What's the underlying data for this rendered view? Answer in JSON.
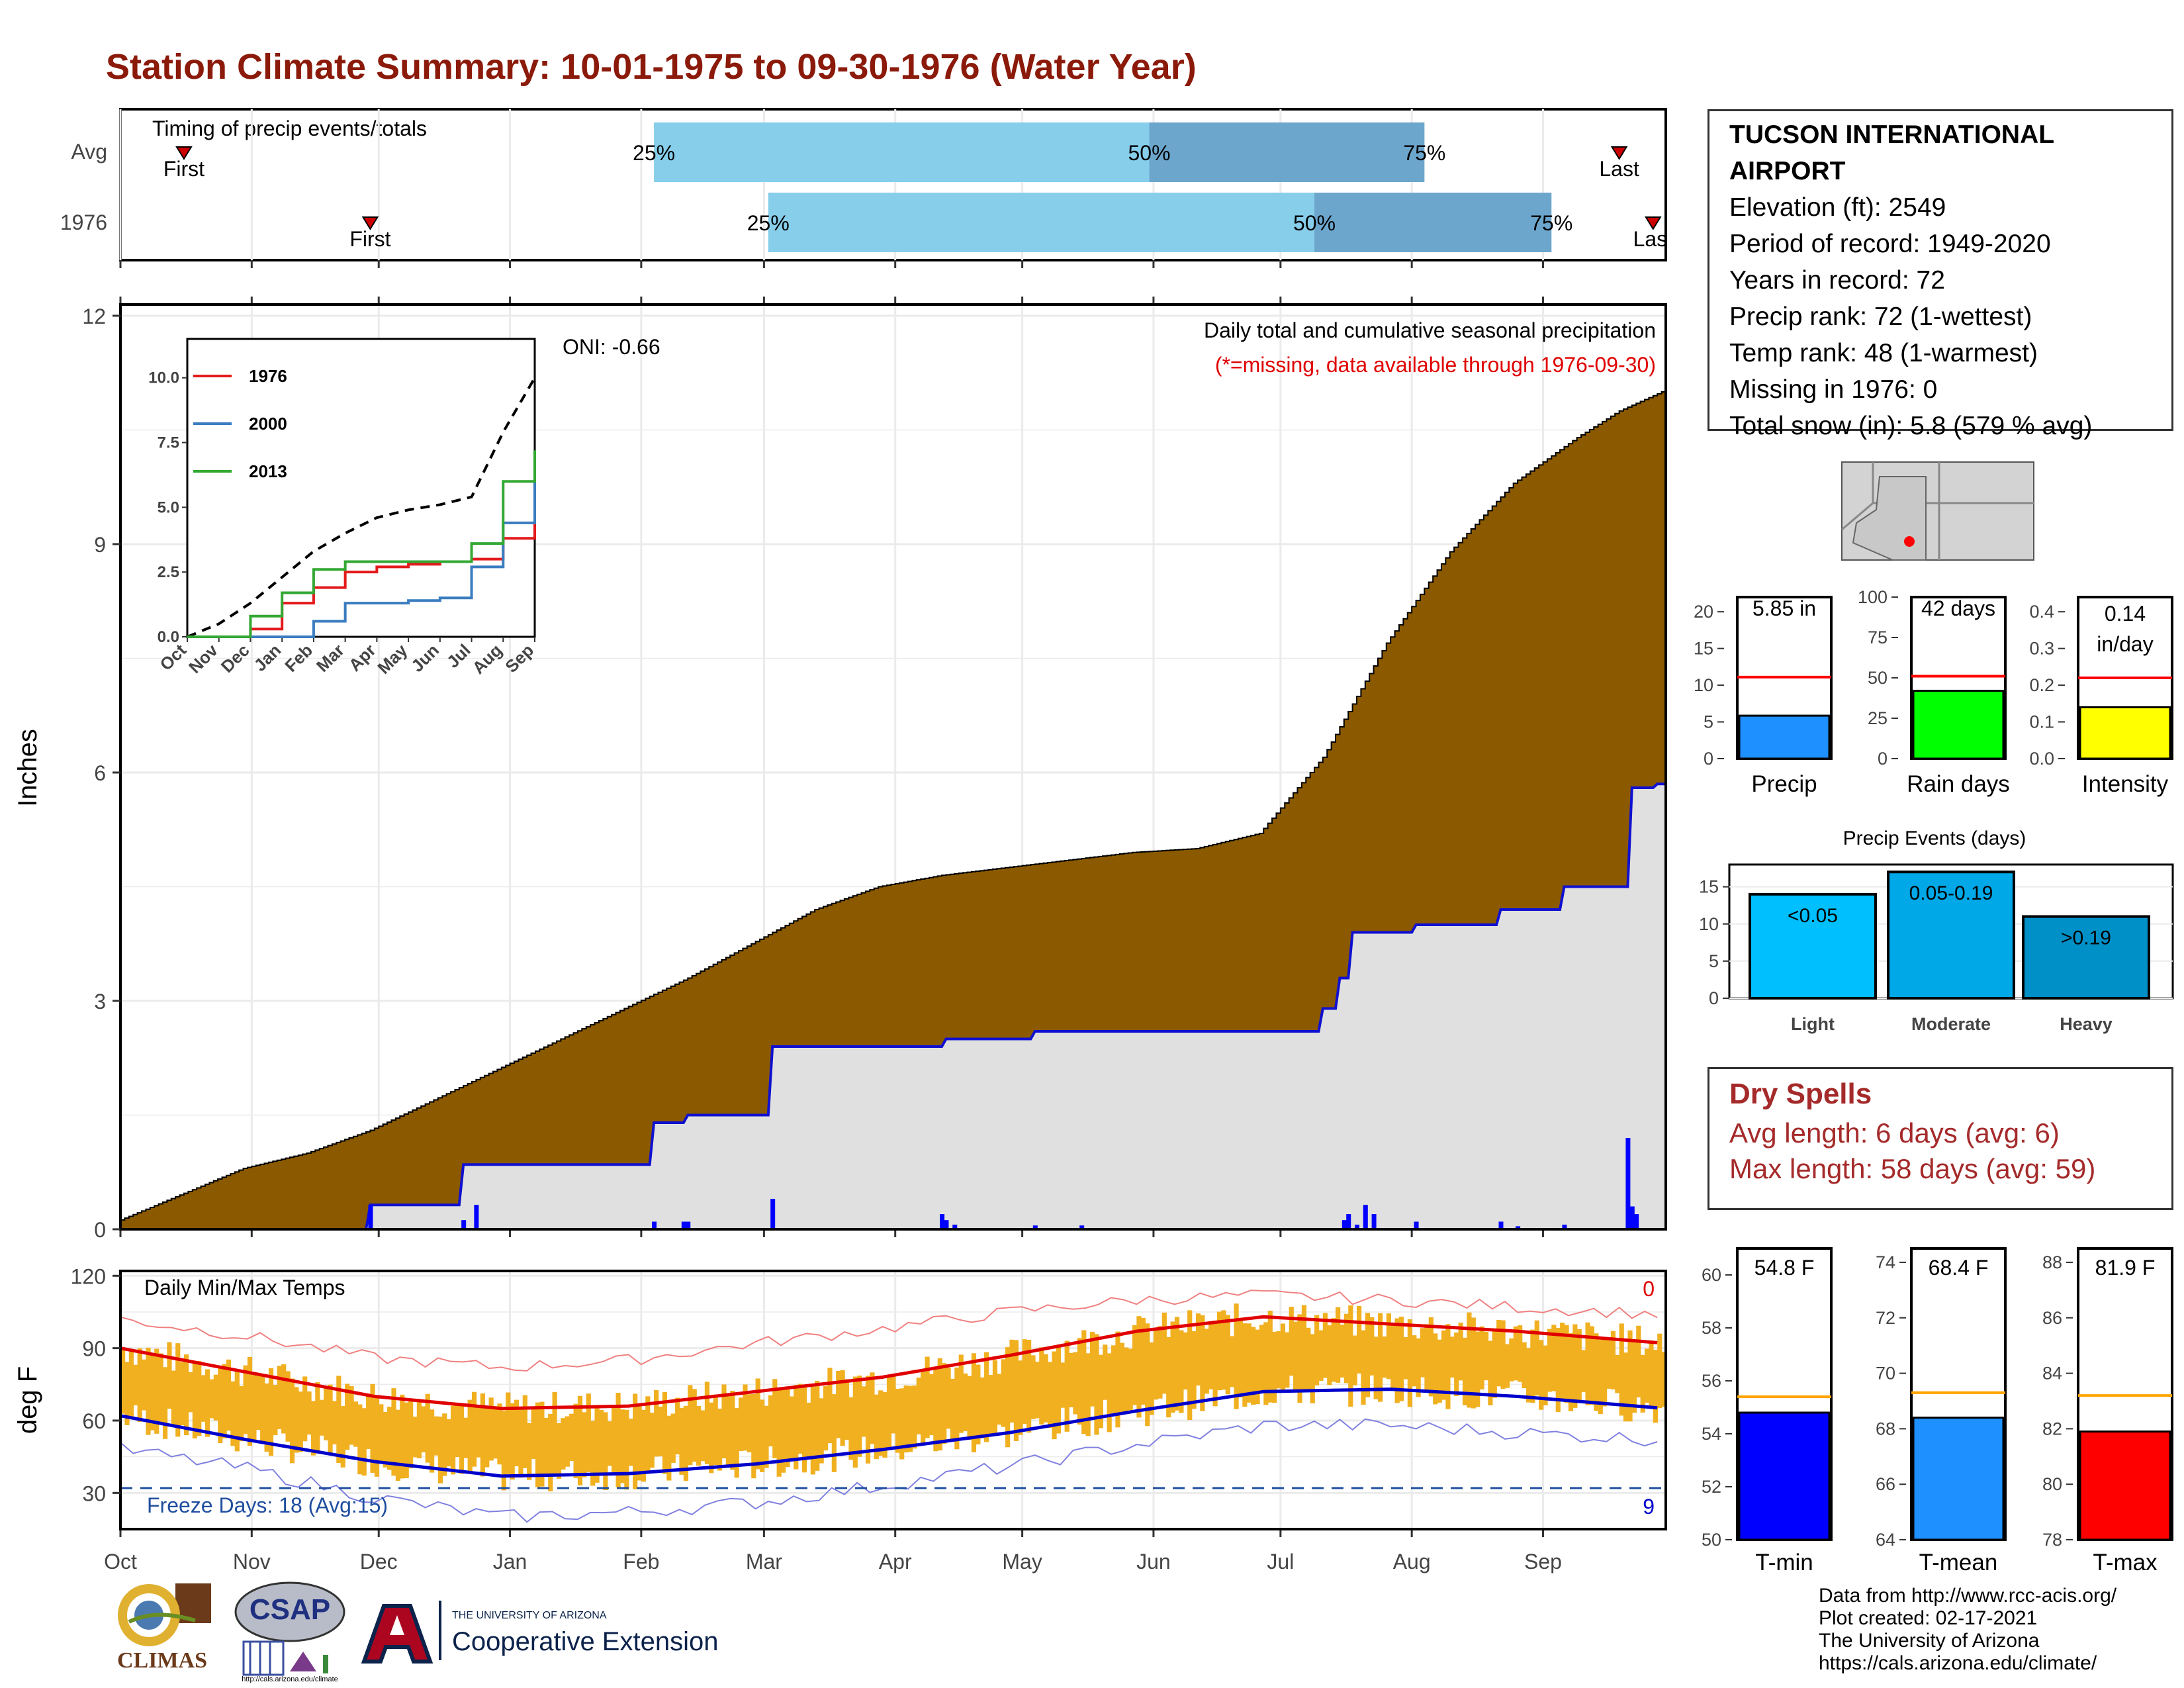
{
  "title": "Station Climate Summary: 10-01-1975 to 09-30-1976 (Water Year)",
  "timing": {
    "label": "Timing of precip events/totals",
    "rows": [
      {
        "name": "Avg",
        "first_day": 15,
        "last_day": 354,
        "p25": 126,
        "p50": 243,
        "p75": 308
      },
      {
        "name": "1976",
        "first_day": 59,
        "last_day": 362,
        "p25": 153,
        "p50": 282,
        "p75": 338
      }
    ],
    "pct_labels": [
      "25%",
      "50%",
      "75%"
    ],
    "first_label": "First",
    "last_label": "Last",
    "colors": {
      "lower": "#87CEEB",
      "upper": "#6CA6CD",
      "marker": "#CC0000"
    }
  },
  "precip_panel": {
    "ylabel": "Inches",
    "yticks": [
      "0",
      "3",
      "6",
      "9",
      "12"
    ],
    "annotation_title": "Daily total and cumulative seasonal precipitation",
    "annotation_missing": "(*=missing, data available through 1976-09-30)",
    "oni": "ONI: -0.66",
    "colors": {
      "avg_fill": "#8B5A00",
      "year_fill": "#E0E0E0",
      "year_line": "#1010D0",
      "daily_bar": "#0000FF"
    }
  },
  "inset": {
    "yticks": [
      "0.0",
      "2.5",
      "5.0",
      "7.5",
      "10.0"
    ],
    "xticks": [
      "Oct",
      "Nov",
      "Dec",
      "Jan",
      "Feb",
      "Mar",
      "Apr",
      "May",
      "Jun",
      "Jul",
      "Aug",
      "Sep"
    ],
    "legend": [
      {
        "name": "1976",
        "color": "#E31A1C"
      },
      {
        "name": "2000",
        "color": "#3A7DC0"
      },
      {
        "name": "2013",
        "color": "#33A833"
      }
    ]
  },
  "temp_panel": {
    "ylabel": "deg F",
    "yticks": [
      "30",
      "60",
      "90",
      "120"
    ],
    "title": "Daily Min/Max Temps",
    "freeze_label": "Freeze Days: 18 (Avg:15)",
    "count_top": "0",
    "count_bottom": "9",
    "colors": {
      "bars": "#F0B020",
      "max_avg": "#E00000",
      "min_avg": "#0000CC",
      "freeze_line": "#1F4E9F"
    }
  },
  "months": [
    "Oct",
    "Nov",
    "Dec",
    "Jan",
    "Feb",
    "Mar",
    "Apr",
    "May",
    "Jun",
    "Jul",
    "Aug",
    "Sep"
  ],
  "station": {
    "name": "TUCSON INTERNATIONAL AIRPORT",
    "lines": [
      "Elevation (ft): 2549",
      "Period of record: 1949-2020",
      "Years in record: 72",
      "Precip rank: 72 (1-wettest)",
      "Temp rank: 48 (1-warmest)",
      "Missing in 1976: 0",
      "Total snow (in): 5.8 (579 % avg)"
    ]
  },
  "gauges_precip": [
    {
      "label": "Precip",
      "value": 5.85,
      "avg": 11.1,
      "ymax": 22,
      "ticks": [
        "0",
        "5",
        "10",
        "15",
        "20"
      ],
      "tick_vals": [
        0,
        5,
        10,
        15,
        20
      ],
      "text": "5.85 in",
      "color": "#1E90FF"
    },
    {
      "label": "Rain days",
      "value": 42,
      "avg": 51,
      "ymax": 100,
      "ticks": [
        "0",
        "25",
        "50",
        "75",
        "100"
      ],
      "tick_vals": [
        0,
        25,
        50,
        75,
        100
      ],
      "text": "42 days",
      "color": "#00FF00"
    },
    {
      "label": "Intensity",
      "value": 0.14,
      "avg": 0.22,
      "ymax": 0.44,
      "ticks": [
        "0.0",
        "0.1",
        "0.2",
        "0.3",
        "0.4"
      ],
      "tick_vals": [
        0,
        0.1,
        0.2,
        0.3,
        0.4
      ],
      "text": "0.14",
      "text2": "in/day",
      "color": "#FFFF00"
    }
  ],
  "events": {
    "title": "Precip Events (days)",
    "ticks": [
      "0",
      "5",
      "10",
      "15"
    ],
    "tick_vals": [
      0,
      5,
      10,
      15
    ],
    "ymax": 18,
    "bars": [
      {
        "category": "Light",
        "value": 14,
        "label": "<0.05",
        "color": "#00BFFF"
      },
      {
        "category": "Moderate",
        "value": 17,
        "label": "0.05-0.19",
        "color": "#00A8E8"
      },
      {
        "category": "Heavy",
        "value": 11,
        "label": ">0.19",
        "color": "#0090C8"
      }
    ]
  },
  "dry_spells": {
    "title": "Dry Spells",
    "avg_line": "Avg length: 6 days (avg: 6)",
    "max_line": "Max length: 58 days (avg: 59)"
  },
  "gauges_temp": [
    {
      "label": "T-min",
      "value": 54.8,
      "avg": 55.4,
      "ymin": 50,
      "ymax": 61,
      "ticks": [
        "50",
        "52",
        "54",
        "56",
        "58",
        "60"
      ],
      "tick_vals": [
        50,
        52,
        54,
        56,
        58,
        60
      ],
      "text": "54.8 F",
      "color": "#0000FF"
    },
    {
      "label": "T-mean",
      "value": 68.4,
      "avg": 69.3,
      "ymin": 64,
      "ymax": 74.5,
      "ticks": [
        "64",
        "66",
        "68",
        "70",
        "72",
        "74"
      ],
      "tick_vals": [
        64,
        66,
        68,
        70,
        72,
        74
      ],
      "text": "68.4 F",
      "color": "#1E90FF"
    },
    {
      "label": "T-max",
      "value": 81.9,
      "avg": 83.2,
      "ymin": 78,
      "ymax": 88.5,
      "ticks": [
        "78",
        "80",
        "82",
        "84",
        "86",
        "88"
      ],
      "tick_vals": [
        78,
        80,
        82,
        84,
        86,
        88
      ],
      "text": "81.9 F",
      "color": "#FF0000"
    }
  ],
  "footer": {
    "lines": [
      "Data from http://www.rcc-acis.org/",
      "Plot created: 02-17-2021",
      "The University of Arizona",
      "https://cals.arizona.edu/climate/"
    ]
  },
  "logos": {
    "climas": "CLIMAS",
    "csap": "CSAP",
    "csap_url": "http://cals.arizona.edu/climate",
    "ua_small": "THE UNIVERSITY OF ARIZONA",
    "ua_big": "Cooperative Extension"
  },
  "chart_data": [
    {
      "type": "area",
      "title": "Daily total and cumulative seasonal precipitation",
      "ylabel": "Inches",
      "ylim": [
        0,
        12
      ],
      "x_unit": "day of water year",
      "avg_cumulative": {
        "x": [
          0,
          15,
          30,
          45,
          60,
          75,
          90,
          105,
          120,
          135,
          150,
          165,
          180,
          195,
          210,
          225,
          240,
          255,
          270,
          285,
          300,
          315,
          330,
          345,
          355,
          365
        ],
        "y": [
          0.1,
          0.45,
          0.8,
          1.0,
          1.3,
          1.7,
          2.1,
          2.5,
          2.9,
          3.3,
          3.75,
          4.2,
          4.5,
          4.65,
          4.75,
          4.85,
          4.95,
          5.0,
          5.2,
          6.2,
          7.7,
          8.9,
          9.8,
          10.4,
          10.75,
          11.0
        ]
      },
      "year_cumulative": {
        "x": [
          0,
          58,
          59,
          80,
          81,
          125,
          126,
          133,
          134,
          153,
          154,
          194,
          195,
          215,
          216,
          283,
          284,
          287,
          288,
          290,
          291,
          305,
          306,
          325,
          326,
          340,
          341,
          356,
          357,
          362,
          363,
          365
        ],
        "y": [
          0,
          0,
          0.32,
          0.32,
          0.85,
          0.85,
          1.4,
          1.4,
          1.5,
          1.5,
          2.4,
          2.4,
          2.5,
          2.5,
          2.6,
          2.6,
          2.9,
          2.9,
          3.3,
          3.3,
          3.9,
          3.9,
          4.0,
          4.0,
          4.2,
          4.2,
          4.5,
          4.5,
          5.8,
          5.8,
          5.85,
          5.85
        ]
      },
      "daily_precip": {
        "x": [
          59,
          81,
          84,
          126,
          133,
          134,
          154,
          194,
          195,
          197,
          216,
          227,
          289,
          290,
          292,
          294,
          296,
          306,
          326,
          330,
          341,
          356,
          357,
          358
        ],
        "y": [
          0.32,
          0.12,
          0.32,
          0.1,
          0.1,
          0.1,
          0.4,
          0.2,
          0.12,
          0.06,
          0.05,
          0.05,
          0.12,
          0.2,
          0.06,
          0.32,
          0.2,
          0.1,
          0.1,
          0.04,
          0.06,
          1.2,
          0.3,
          0.2
        ]
      }
    },
    {
      "type": "line",
      "title": "",
      "ylim": [
        0,
        11.5
      ],
      "x": [
        "Oct",
        "Nov",
        "Dec",
        "Jan",
        "Feb",
        "Mar",
        "Apr",
        "May",
        "Jun",
        "Jul",
        "Aug",
        "Sep"
      ],
      "series": [
        {
          "name": "",
          "values": [
            0.0,
            0.5,
            1.3,
            2.3,
            3.3,
            4.0,
            4.6,
            4.9,
            5.1,
            5.4,
            7.9,
            10.0
          ]
        },
        {
          "name": "1976",
          "values": [
            0.0,
            0.0,
            0.3,
            1.3,
            1.9,
            2.5,
            2.7,
            2.8,
            2.9,
            3.0,
            3.8,
            4.8
          ]
        },
        {
          "name": "2000",
          "values": [
            0.0,
            0.0,
            0.0,
            0.0,
            0.6,
            1.3,
            1.3,
            1.4,
            1.5,
            2.7,
            4.4,
            6.2
          ]
        },
        {
          "name": "2013",
          "values": [
            0.0,
            0.0,
            0.8,
            1.7,
            2.6,
            2.9,
            2.9,
            2.9,
            2.9,
            3.6,
            6.0,
            7.2
          ]
        }
      ]
    },
    {
      "type": "bar",
      "title": "Daily Min/Max Temps",
      "ylabel": "deg F",
      "ylim": [
        15,
        122
      ],
      "avg_max": {
        "x": [
          0,
          30,
          60,
          90,
          120,
          150,
          180,
          210,
          240,
          270,
          300,
          330,
          365
        ],
        "y": [
          90,
          80,
          70,
          65,
          66,
          72,
          78,
          87,
          97,
          103,
          100,
          97,
          92
        ]
      },
      "avg_min": {
        "x": [
          0,
          30,
          60,
          90,
          120,
          150,
          180,
          210,
          240,
          270,
          300,
          330,
          365
        ],
        "y": [
          62,
          52,
          43,
          37,
          38,
          42,
          48,
          55,
          64,
          72,
          73,
          70,
          65
        ]
      },
      "record_max": {
        "x": [
          0,
          30,
          60,
          90,
          120,
          150,
          180,
          210,
          240,
          270,
          300,
          330,
          365
        ],
        "y": [
          102,
          95,
          86,
          82,
          85,
          92,
          98,
          105,
          110,
          112,
          110,
          107,
          104
        ]
      },
      "record_min": {
        "x": [
          0,
          30,
          60,
          90,
          120,
          150,
          180,
          210,
          240,
          270,
          300,
          330,
          365
        ],
        "y": [
          48,
          40,
          28,
          20,
          22,
          26,
          33,
          41,
          50,
          58,
          58,
          55,
          52
        ]
      },
      "freeze_threshold": 32
    }
  ]
}
